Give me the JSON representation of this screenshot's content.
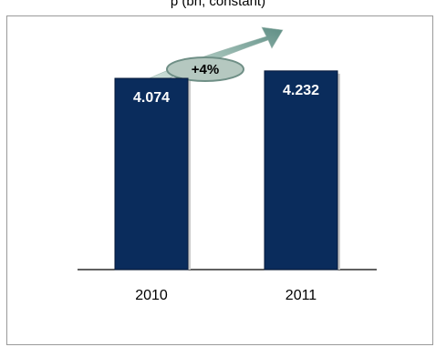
{
  "title": "p                                    (bn, constant)",
  "colors": {
    "bar": "#0a2c5c",
    "bar_shade": "#06193a",
    "arrow_light": "#e8f1ee",
    "arrow_dark": "#5f8e85",
    "ellipse_fill": "#b5c8c0",
    "ellipse_stroke": "#6f8f86"
  },
  "chart_data": {
    "type": "bar",
    "title": "p                                    (bn, constant)",
    "categories": [
      "2010",
      "2011"
    ],
    "values": [
      4.074,
      4.232
    ],
    "value_labels": [
      "4.074",
      "4.232"
    ],
    "ylim": [
      0,
      4.85
    ],
    "grid": false,
    "legend": "none",
    "annotation": {
      "text": "+4%",
      "shape": "arrow-with-ellipse"
    }
  }
}
